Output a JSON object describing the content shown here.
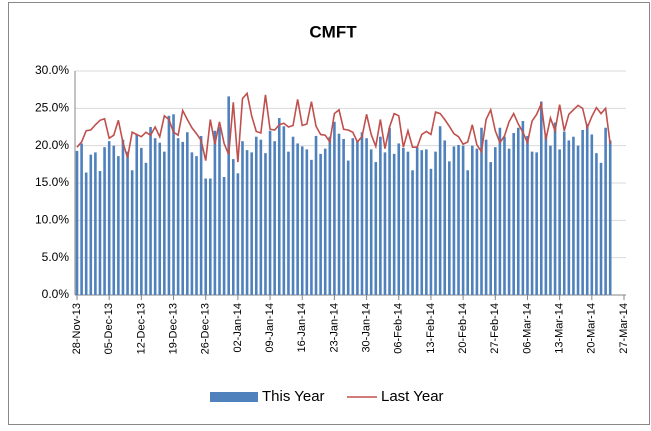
{
  "chart_data": {
    "type": "bar_line",
    "title": "CMFT",
    "categories": [
      "28-Nov-13",
      null,
      null,
      null,
      null,
      null,
      null,
      "05-Dec-13",
      null,
      null,
      null,
      null,
      null,
      null,
      "12-Dec-13",
      null,
      null,
      null,
      null,
      null,
      null,
      "19-Dec-13",
      null,
      null,
      null,
      null,
      null,
      null,
      "26-Dec-13",
      null,
      null,
      null,
      null,
      null,
      null,
      "02-Jan-14",
      null,
      null,
      null,
      null,
      null,
      null,
      "09-Jan-14",
      null,
      null,
      null,
      null,
      null,
      null,
      "16-Jan-14",
      null,
      null,
      null,
      null,
      null,
      null,
      "23-Jan-14",
      null,
      null,
      null,
      null,
      null,
      null,
      "30-Jan-14",
      null,
      null,
      null,
      null,
      null,
      null,
      "06-Feb-14",
      null,
      null,
      null,
      null,
      null,
      null,
      "13-Feb-14",
      null,
      null,
      null,
      null,
      null,
      null,
      "20-Feb-14",
      null,
      null,
      null,
      null,
      null,
      null,
      "27-Feb-14",
      null,
      null,
      null,
      null,
      null,
      null,
      "06-Mar-14",
      null,
      null,
      null,
      null,
      null,
      null,
      "13-Mar-14",
      null,
      null,
      null,
      null,
      null,
      null,
      "20-Mar-14",
      null,
      null,
      null,
      null,
      null,
      null,
      "27-Mar-14"
    ],
    "series": [
      {
        "name": "This Year",
        "kind": "bar",
        "color": "#4f81bd",
        "values": [
          19.3,
          20.3,
          16.4,
          18.8,
          19.1,
          16.6,
          19.8,
          20.6,
          20.0,
          18.6,
          20.8,
          19.2,
          16.7,
          21.5,
          19.7,
          17.7,
          22.5,
          21.0,
          20.4,
          19.2,
          24.0,
          24.2,
          21.0,
          20.5,
          21.8,
          19.1,
          18.6,
          21.3,
          15.6,
          15.6,
          22.0,
          22.5,
          15.8,
          26.6,
          18.2,
          16.3,
          20.6,
          19.4,
          19.1,
          21.2,
          20.8,
          19.0,
          22.0,
          20.6,
          23.7,
          22.6,
          19.2,
          21.2,
          20.3,
          19.9,
          19.5,
          18.1,
          21.3,
          18.9,
          19.6,
          21.2,
          23.2,
          21.6,
          20.9,
          18.0,
          21.0,
          20.7,
          21.8,
          21.0,
          19.5,
          17.8,
          21.2,
          19.1,
          22.4,
          18.9,
          20.3,
          19.7,
          19.2,
          16.7,
          19.8,
          19.4,
          19.5,
          16.9,
          19.2,
          22.6,
          20.7,
          17.9,
          19.9,
          20.1,
          20.0,
          16.7,
          20.0,
          19.6,
          22.4,
          20.8,
          17.8,
          19.8,
          22.4,
          21.2,
          19.6,
          21.7,
          22.4,
          23.3,
          21.3,
          19.2,
          19.1,
          25.9,
          21.6,
          20.0,
          23.1,
          19.5,
          21.9,
          20.7,
          21.2,
          20.0,
          22.1,
          22.9,
          21.5,
          19.0,
          17.7,
          22.4,
          20.7,
          null,
          null,
          null
        ]
      },
      {
        "name": "Last Year",
        "kind": "line",
        "color": "#c0504d",
        "values": [
          19.8,
          20.5,
          22.0,
          22.1,
          22.8,
          23.4,
          23.6,
          21.0,
          21.4,
          23.4,
          20.4,
          18.4,
          21.8,
          21.5,
          21.2,
          21.8,
          21.4,
          22.5,
          21.2,
          24.0,
          23.5,
          21.8,
          21.4,
          24.7,
          23.5,
          22.4,
          21.6,
          20.7,
          18.0,
          23.5,
          20.2,
          23.2,
          20.3,
          18.8,
          25.8,
          17.8,
          26.3,
          27.0,
          24.0,
          21.9,
          21.7,
          26.8,
          22.2,
          22.1,
          22.8,
          23.0,
          22.5,
          22.7,
          26.2,
          22.7,
          22.9,
          25.9,
          22.6,
          21.5,
          21.4,
          20.5,
          24.3,
          24.8,
          22.2,
          22.1,
          21.8,
          20.5,
          21.2,
          24.2,
          21.5,
          19.9,
          23.5,
          19.6,
          22.5,
          24.3,
          24.0,
          19.8,
          22.0,
          19.8,
          19.8,
          21.5,
          21.9,
          21.5,
          24.5,
          24.3,
          23.5,
          22.6,
          21.6,
          21.2,
          20.2,
          20.5,
          22.8,
          20.1,
          19.2,
          23.5,
          24.8,
          22.0,
          20.4,
          21.3,
          23.2,
          24.3,
          22.9,
          21.8,
          20.4,
          23.3,
          24.2,
          25.6,
          20.8,
          23.7,
          22.0,
          25.5,
          22.0,
          24.2,
          24.8,
          25.4,
          25.0,
          22.4,
          23.9,
          25.1,
          24.3,
          25.0,
          20.2,
          null,
          null,
          null
        ]
      }
    ],
    "ylim": [
      0,
      30
    ],
    "yticks": [
      {
        "value": 0,
        "label": "0.0%"
      },
      {
        "value": 5,
        "label": "5.0%"
      },
      {
        "value": 10,
        "label": "10.0%"
      },
      {
        "value": 15,
        "label": "15.0%"
      },
      {
        "value": 20,
        "label": "20.0%"
      },
      {
        "value": 25,
        "label": "25.0%"
      },
      {
        "value": 30,
        "label": "30.0%"
      }
    ],
    "grid": true,
    "legend": "bottom"
  }
}
